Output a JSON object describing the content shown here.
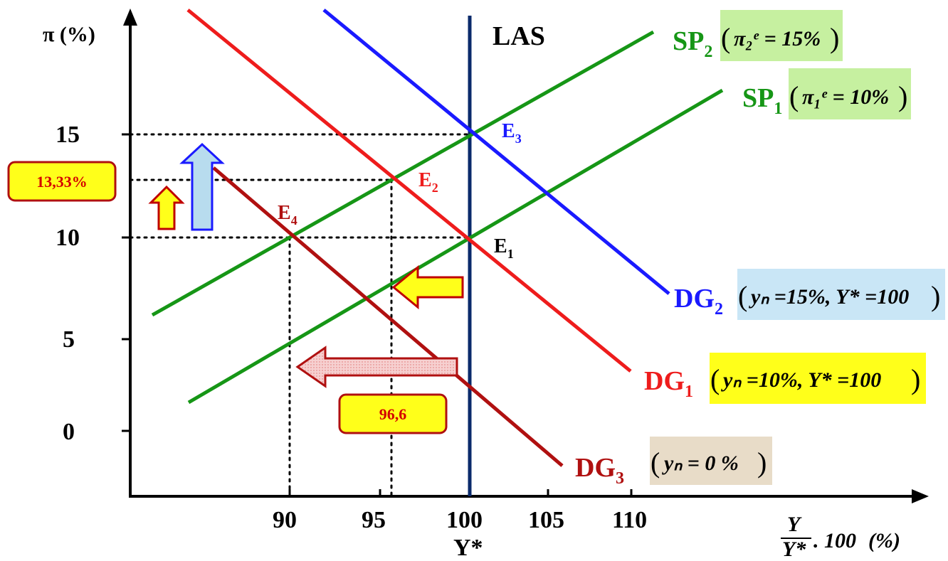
{
  "y_axis": {
    "title": "π (%)",
    "ticks": [
      {
        "value": 15,
        "label": "15"
      },
      {
        "value": 10,
        "label": "10"
      },
      {
        "value": 5,
        "label": "5"
      },
      {
        "value": 0,
        "label": "0"
      }
    ]
  },
  "x_axis": {
    "ticks": [
      {
        "value": 90,
        "label": "90"
      },
      {
        "value": 95,
        "label": "95"
      },
      {
        "value": 100,
        "label": "100"
      },
      {
        "value": 105,
        "label": "105"
      },
      {
        "value": 110,
        "label": "110"
      }
    ],
    "potential_label": "Y*",
    "title_num": "Y",
    "title_den": "Y*",
    "title_rest": ". 100",
    "title_unit": "(%)"
  },
  "curves": {
    "las": {
      "label": "LAS",
      "color": "#0a2a6b",
      "x": 100
    },
    "sp1": {
      "label": "SP",
      "sub": "1",
      "color": "#169616",
      "param": "π₁ᵉ = 10%",
      "param_bg": "#c6f0a0"
    },
    "sp2": {
      "label": "SP",
      "sub": "2",
      "color": "#169616",
      "param": "π₂ᵉ = 15%",
      "param_bg": "#c6f0a0"
    },
    "dg1": {
      "label": "DG",
      "sub": "1",
      "color": "#ee1c1c",
      "param": "yₙ =10%, Y* =100",
      "param_bg": "#ffff1a"
    },
    "dg2": {
      "label": "DG",
      "sub": "2",
      "color": "#1a1aff",
      "param": "yₙ =15%, Y* =100",
      "param_bg": "#c9e6f6"
    },
    "dg3": {
      "label": "DG",
      "sub": "3",
      "color": "#b01010",
      "param": "yₙ = 0 %",
      "param_bg": "#e8dcc8"
    }
  },
  "equilibria": [
    {
      "id": "E1",
      "label": "E",
      "sub": "1",
      "color": "#000000",
      "x": 100,
      "y": 10
    },
    {
      "id": "E2",
      "label": "E",
      "sub": "2",
      "color": "#ee1c1c",
      "x": 96.6,
      "y": 13.33
    },
    {
      "id": "E3",
      "label": "E",
      "sub": "3",
      "color": "#1a1aff",
      "x": 100,
      "y": 15
    },
    {
      "id": "E4",
      "label": "E",
      "sub": "4",
      "color": "#b01010",
      "x": 90,
      "y": 10
    }
  ],
  "callouts": {
    "inflation": "13,33%",
    "output": "96,6"
  }
}
